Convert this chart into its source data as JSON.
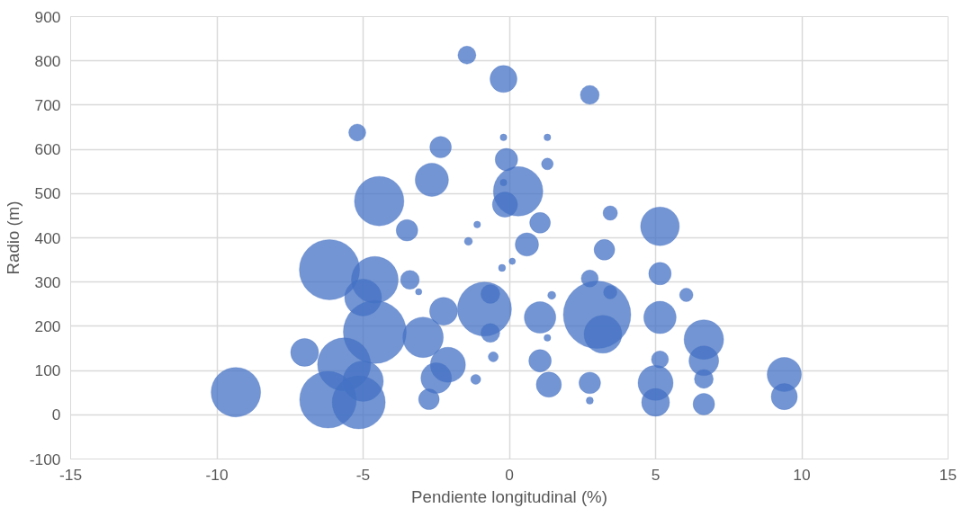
{
  "chart_data": {
    "type": "bubble",
    "xlabel": "Pendiente longitudinal (%)",
    "ylabel": "Radio (m)",
    "xlim": [
      -15,
      15
    ],
    "xticks": [
      -15,
      -10,
      -5,
      0,
      5,
      10,
      15
    ],
    "ylim": [
      -100,
      900
    ],
    "yticks": [
      -100,
      0,
      100,
      200,
      300,
      400,
      500,
      600,
      700,
      800,
      900
    ],
    "grid": true,
    "series": [
      {
        "color": "#4472c4",
        "x": [
          -1.45,
          -5.2,
          -2.35,
          -2.65,
          -4.45,
          -3.5,
          -1.1,
          -1.4,
          -6.15,
          -4.6,
          -3.4,
          -3.1,
          -5.0,
          -2.25,
          -0.85,
          -0.65,
          -0.65,
          -4.6,
          -2.95,
          -7.0,
          -5.65,
          -2.1,
          -5.0,
          -2.5,
          -0.55,
          -1.15,
          -2.75,
          -9.35,
          -6.2,
          -5.15,
          -0.2,
          2.75,
          -0.2,
          1.3,
          -0.1,
          1.3,
          -0.2,
          0.3,
          -0.15,
          3.45,
          1.05,
          5.15,
          0.6,
          3.25,
          0.1,
          -0.25,
          5.15,
          2.75,
          1.45,
          3.45,
          6.05,
          1.05,
          3.0,
          5.15,
          3.2,
          6.65,
          1.3,
          1.05,
          5.15,
          6.65,
          1.35,
          2.75,
          5.0,
          6.65,
          2.75,
          5.0,
          6.65,
          9.4,
          9.4
        ],
        "values": [
          813,
          638,
          605,
          531,
          483,
          417,
          430,
          392,
          328,
          305,
          305,
          278,
          265,
          234,
          239,
          273,
          185,
          187,
          175,
          141,
          114,
          113,
          76,
          83,
          131,
          80,
          35,
          51,
          34,
          28,
          759,
          723,
          627,
          627,
          577,
          567,
          525,
          505,
          475,
          456,
          434,
          426,
          385,
          373,
          347,
          332,
          319,
          308,
          270,
          277,
          271,
          220,
          226,
          220,
          182,
          170,
          174,
          122,
          125,
          122,
          68,
          72,
          72,
          81,
          32,
          28,
          24,
          91,
          41
        ],
        "sizes": [
          0.071,
          0.064,
          0.102,
          0.243,
          0.538,
          0.102,
          0.01,
          0.014,
          0.798,
          0.481,
          0.078,
          0.009,
          0.299,
          0.171,
          0.64,
          0.078,
          0.078,
          0.871,
          0.36,
          0.171,
          0.619,
          0.27,
          0.36,
          0.206,
          0.022,
          0.022,
          0.094,
          0.538,
          0.706,
          0.619,
          0.16,
          0.078,
          0.01,
          0.01,
          0.111,
          0.03,
          0.01,
          0.538,
          0.139,
          0.046,
          0.094,
          0.329,
          0.12,
          0.094,
          0.009,
          0.011,
          0.111,
          0.064,
          0.014,
          0.04,
          0.04,
          0.218,
          1,
          0.23,
          0.314,
          0.344,
          0.01,
          0.111,
          0.064,
          0.194,
          0.139,
          0.102,
          0.27,
          0.078,
          0.011,
          0.171,
          0.102,
          0.257,
          0.15
        ]
      }
    ]
  }
}
